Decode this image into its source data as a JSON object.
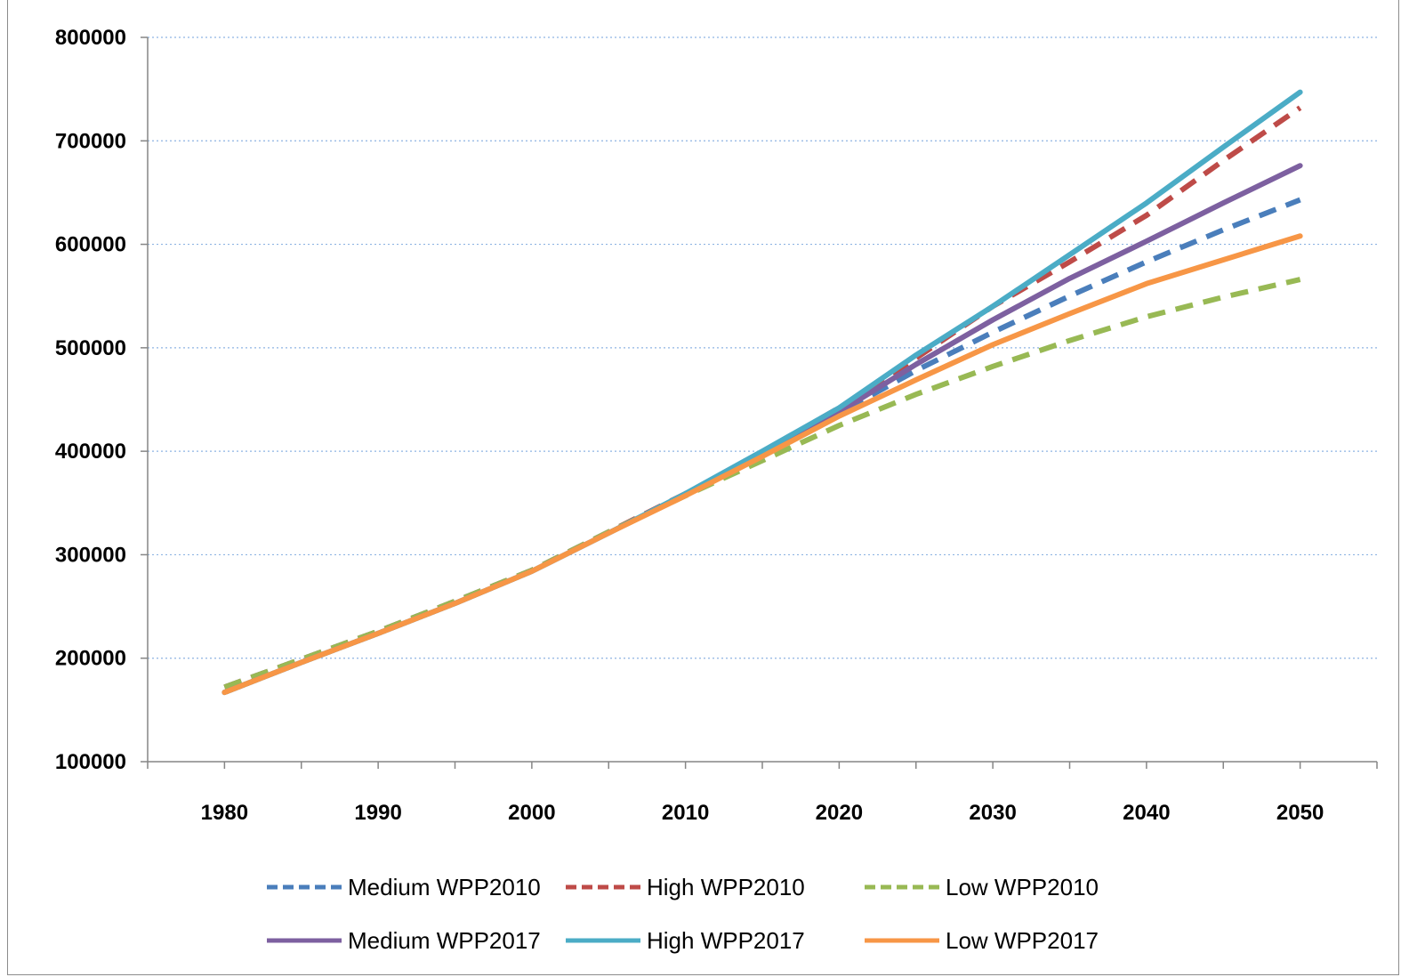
{
  "chart_data": {
    "type": "line",
    "title": "",
    "xlabel": "",
    "ylabel": "",
    "xlim": [
      1975,
      2055
    ],
    "ylim": [
      100000,
      800000
    ],
    "grid": "horizontal dotted",
    "legend_position": "bottom",
    "x_ticks": [
      "1980",
      "1990",
      "2000",
      "2010",
      "2020",
      "2030",
      "2040",
      "2050"
    ],
    "y_ticks": [
      "100000",
      "200000",
      "300000",
      "400000",
      "500000",
      "600000",
      "700000",
      "800000"
    ],
    "series": [
      {
        "name": "Medium WPP2010",
        "color": "#4a7ebb",
        "dash": true,
        "x": [
          1980,
          1985,
          1990,
          1995,
          2000,
          2005,
          2010,
          2015,
          2020,
          2025,
          2030,
          2035,
          2040,
          2045,
          2050
        ],
        "values": [
          172000,
          199000,
          226000,
          255000,
          285000,
          322000,
          358000,
          397000,
          437000,
          478000,
          515000,
          550000,
          583000,
          614000,
          643000
        ]
      },
      {
        "name": "High WPP2010",
        "color": "#be4b48",
        "dash": true,
        "x": [
          1980,
          1985,
          1990,
          1995,
          2000,
          2005,
          2010,
          2015,
          2020,
          2025,
          2030,
          2035,
          2040,
          2045,
          2050
        ],
        "values": [
          172000,
          199000,
          226000,
          255000,
          285000,
          322000,
          359000,
          399000,
          442000,
          490000,
          540000,
          583000,
          628000,
          681000,
          732000
        ]
      },
      {
        "name": "Low WPP2010",
        "color": "#98b954",
        "dash": true,
        "x": [
          1980,
          1985,
          1990,
          1995,
          2000,
          2005,
          2010,
          2015,
          2020,
          2025,
          2030,
          2035,
          2040,
          2045,
          2050
        ],
        "values": [
          172000,
          199000,
          226000,
          255000,
          285000,
          322000,
          357000,
          391000,
          425000,
          455000,
          482000,
          507000,
          530000,
          549000,
          566000
        ]
      },
      {
        "name": "Medium WPP2017",
        "color": "#7d60a0",
        "dash": false,
        "x": [
          1980,
          1985,
          1990,
          1995,
          2000,
          2005,
          2010,
          2015,
          2020,
          2025,
          2030,
          2035,
          2040,
          2045,
          2050
        ],
        "values": [
          167000,
          196000,
          224000,
          253000,
          284000,
          321000,
          358000,
          397000,
          438000,
          484000,
          527000,
          567000,
          603000,
          640000,
          676000
        ]
      },
      {
        "name": "High WPP2017",
        "color": "#4bacc6",
        "dash": false,
        "x": [
          1980,
          1985,
          1990,
          1995,
          2000,
          2005,
          2010,
          2015,
          2020,
          2025,
          2030,
          2035,
          2040,
          2045,
          2050
        ],
        "values": [
          167000,
          196000,
          224000,
          253000,
          284000,
          321000,
          359000,
          400000,
          442000,
          493000,
          540000,
          590000,
          640000,
          694000,
          747000
        ]
      },
      {
        "name": "Low WPP2017",
        "color": "#f79646",
        "dash": false,
        "x": [
          1980,
          1985,
          1990,
          1995,
          2000,
          2005,
          2010,
          2015,
          2020,
          2025,
          2030,
          2035,
          2040,
          2045,
          2050
        ],
        "values": [
          167000,
          196000,
          224000,
          253000,
          284000,
          321000,
          357000,
          395000,
          434000,
          469000,
          503000,
          533000,
          562000,
          585000,
          608000
        ]
      }
    ]
  }
}
